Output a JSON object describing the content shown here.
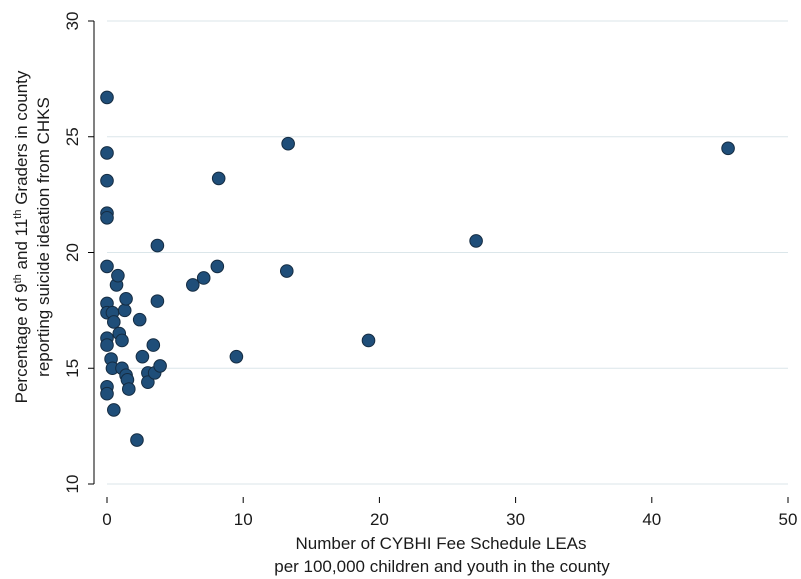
{
  "chart_data": {
    "type": "scatter",
    "title": "",
    "xlabel_lines": [
      "Number  of CYBHI Fee Schedule LEAs",
      "per 100,000 children and youth in the county"
    ],
    "ylabel_parts": {
      "line1": [
        {
          "text": "Percentage of 9",
          "sup": false
        },
        {
          "text": "th",
          "sup": true
        },
        {
          "text": " and 11",
          "sup": false
        },
        {
          "text": "th",
          "sup": true
        },
        {
          "text": " Graders in county",
          "sup": false
        }
      ],
      "line2": "reporting suicide ideation from CHKS"
    },
    "xlim": [
      0,
      50
    ],
    "ylim": [
      10,
      30
    ],
    "x_ticks": [
      0,
      10,
      20,
      30,
      40,
      50
    ],
    "y_ticks": [
      10,
      15,
      20,
      25,
      30
    ],
    "grid": "horizontal",
    "colors": {
      "point": "#1f4e79",
      "point_edge": "#152c42",
      "grid": "#dbe6ea"
    },
    "points": [
      [
        0,
        26.7
      ],
      [
        0,
        24.3
      ],
      [
        0,
        23.1
      ],
      [
        0,
        21.7
      ],
      [
        0,
        21.5
      ],
      [
        0,
        19.4
      ],
      [
        0,
        17.8
      ],
      [
        0,
        17.4
      ],
      [
        0,
        16.3
      ],
      [
        0,
        16.0
      ],
      [
        0,
        14.2
      ],
      [
        0,
        13.9
      ],
      [
        0.3,
        15.4
      ],
      [
        0.4,
        15.0
      ],
      [
        0.4,
        17.4
      ],
      [
        0.5,
        17.0
      ],
      [
        0.5,
        13.2
      ],
      [
        0.7,
        18.6
      ],
      [
        0.8,
        19.0
      ],
      [
        0.9,
        16.5
      ],
      [
        1.1,
        16.2
      ],
      [
        1.1,
        15.0
      ],
      [
        1.3,
        17.5
      ],
      [
        1.4,
        18.0
      ],
      [
        1.4,
        14.7
      ],
      [
        1.5,
        14.5
      ],
      [
        1.6,
        14.1
      ],
      [
        2.2,
        11.9
      ],
      [
        2.4,
        17.1
      ],
      [
        2.6,
        15.5
      ],
      [
        3.0,
        14.8
      ],
      [
        3.0,
        14.4
      ],
      [
        3.4,
        16.0
      ],
      [
        3.5,
        14.8
      ],
      [
        3.7,
        20.3
      ],
      [
        3.7,
        17.9
      ],
      [
        3.9,
        15.1
      ],
      [
        6.3,
        18.6
      ],
      [
        7.1,
        18.9
      ],
      [
        8.1,
        19.4
      ],
      [
        8.2,
        23.2
      ],
      [
        9.5,
        15.5
      ],
      [
        13.2,
        19.2
      ],
      [
        13.3,
        24.7
      ],
      [
        19.2,
        16.2
      ],
      [
        27.1,
        20.5
      ],
      [
        45.6,
        24.5
      ]
    ]
  }
}
